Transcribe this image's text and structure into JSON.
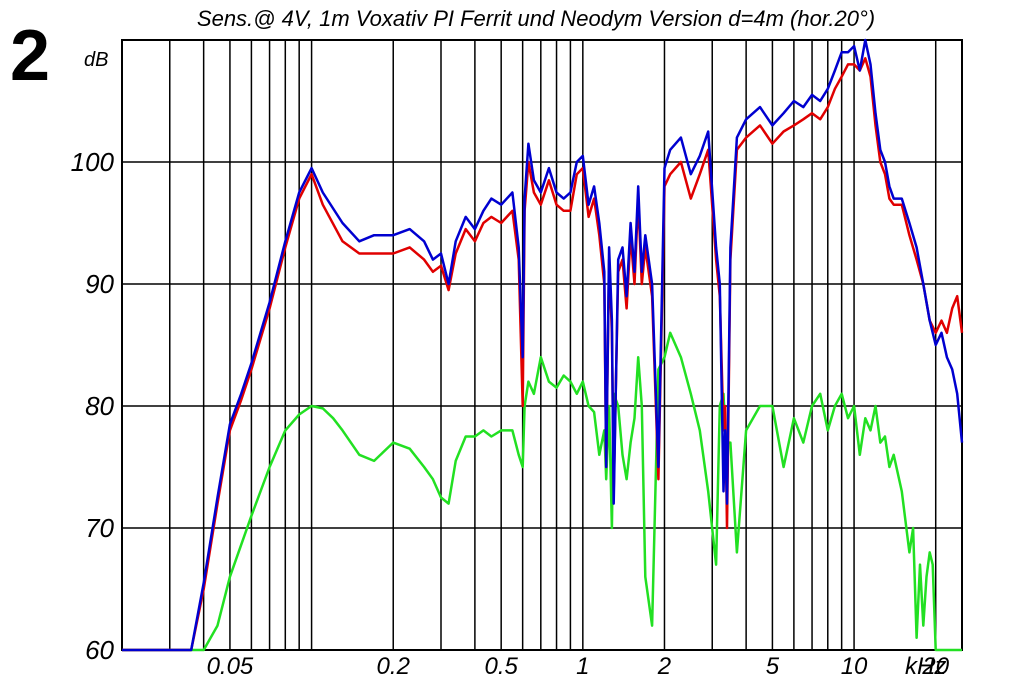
{
  "figure_number": "2",
  "chart_data": {
    "type": "line",
    "title": "Sens.@ 4V, 1m Voxativ PI Ferrit und Neodym Version d=4m (hor.20°)",
    "xlabel": "kHz",
    "ylabel": "dB",
    "x_scale": "log",
    "xlim": [
      0.02,
      25
    ],
    "ylim": [
      60,
      110
    ],
    "grid": true,
    "x_ticks": [
      {
        "value": 0.05,
        "label": "0.05"
      },
      {
        "value": 0.2,
        "label": "0.2"
      },
      {
        "value": 0.5,
        "label": "0.5"
      },
      {
        "value": 1,
        "label": "1"
      },
      {
        "value": 2,
        "label": "2"
      },
      {
        "value": 5,
        "label": "5"
      },
      {
        "value": 10,
        "label": "10"
      },
      {
        "value": 20,
        "label": "20"
      }
    ],
    "y_ticks": [
      {
        "value": 60,
        "label": "60"
      },
      {
        "value": 70,
        "label": "70"
      },
      {
        "value": 80,
        "label": "80"
      },
      {
        "value": 90,
        "label": "90"
      },
      {
        "value": 100,
        "label": "100"
      }
    ],
    "series": [
      {
        "color": "#e00000",
        "x": [
          0.02,
          0.036,
          0.04,
          0.045,
          0.05,
          0.055,
          0.06,
          0.07,
          0.08,
          0.09,
          0.1,
          0.11,
          0.13,
          0.15,
          0.17,
          0.2,
          0.23,
          0.26,
          0.28,
          0.3,
          0.32,
          0.34,
          0.37,
          0.4,
          0.43,
          0.46,
          0.5,
          0.55,
          0.58,
          0.6,
          0.61,
          0.63,
          0.66,
          0.7,
          0.75,
          0.8,
          0.85,
          0.9,
          0.95,
          1.0,
          1.05,
          1.1,
          1.15,
          1.2,
          1.22,
          1.25,
          1.28,
          1.3,
          1.35,
          1.4,
          1.45,
          1.5,
          1.55,
          1.6,
          1.65,
          1.7,
          1.8,
          1.9,
          2.0,
          2.1,
          2.3,
          2.5,
          2.7,
          2.9,
          3.1,
          3.2,
          3.3,
          3.35,
          3.4,
          3.5,
          3.7,
          4.0,
          4.5,
          5.0,
          5.5,
          6.0,
          6.5,
          7.0,
          7.5,
          8.0,
          8.5,
          9.0,
          9.5,
          10.0,
          10.5,
          11.0,
          11.5,
          12.0,
          12.5,
          13.0,
          13.5,
          14.0,
          15.0,
          16.0,
          17.0,
          18.0,
          19.0,
          20.0,
          21.0,
          22.0,
          23.0,
          24.0,
          25.0
        ],
        "y": [
          60,
          60,
          65,
          72,
          78,
          80.5,
          83,
          88,
          93,
          97,
          99,
          96.5,
          93.5,
          92.5,
          92.5,
          92.5,
          93,
          92,
          91,
          91.5,
          89.5,
          92.5,
          94.5,
          93.5,
          95,
          95.5,
          95,
          96,
          92,
          80,
          96,
          100,
          97.5,
          96.5,
          98.5,
          96.5,
          96,
          96,
          99,
          99.5,
          95.5,
          97,
          94,
          90,
          75,
          92,
          86,
          73,
          91,
          92,
          88,
          94,
          90,
          97,
          90,
          93,
          89,
          74,
          98,
          99,
          100,
          97,
          99,
          101,
          92,
          89,
          78,
          80,
          70,
          92,
          101,
          102,
          103,
          101.5,
          102.5,
          103,
          103.5,
          104,
          103.5,
          104.5,
          106,
          107,
          108,
          108,
          107.5,
          108.5,
          107,
          103,
          100,
          99,
          97,
          96.5,
          96.5,
          94,
          92,
          90,
          87,
          86,
          87,
          86,
          88,
          89,
          86
        ]
      },
      {
        "color": "#0000d0",
        "x": [
          0.02,
          0.036,
          0.04,
          0.045,
          0.05,
          0.055,
          0.06,
          0.07,
          0.08,
          0.09,
          0.1,
          0.11,
          0.13,
          0.15,
          0.17,
          0.2,
          0.23,
          0.26,
          0.28,
          0.3,
          0.32,
          0.34,
          0.37,
          0.4,
          0.43,
          0.46,
          0.5,
          0.55,
          0.58,
          0.6,
          0.61,
          0.63,
          0.66,
          0.7,
          0.75,
          0.8,
          0.85,
          0.9,
          0.95,
          1.0,
          1.05,
          1.1,
          1.15,
          1.2,
          1.22,
          1.25,
          1.28,
          1.3,
          1.35,
          1.4,
          1.45,
          1.5,
          1.55,
          1.6,
          1.65,
          1.7,
          1.8,
          1.9,
          2.0,
          2.1,
          2.3,
          2.5,
          2.7,
          2.9,
          3.1,
          3.2,
          3.3,
          3.35,
          3.4,
          3.5,
          3.7,
          4.0,
          4.5,
          5.0,
          5.5,
          6.0,
          6.5,
          7.0,
          7.5,
          8.0,
          8.5,
          9.0,
          9.5,
          10.0,
          10.5,
          11.0,
          11.5,
          12.0,
          12.5,
          13.0,
          13.5,
          14.0,
          15.0,
          16.0,
          17.0,
          18.0,
          19.0,
          20.0,
          21.0,
          22.0,
          23.0,
          24.0,
          25.0
        ],
        "y": [
          60,
          60,
          65.5,
          72.5,
          78.5,
          81,
          83.5,
          88.5,
          93.5,
          97.5,
          99.5,
          97.5,
          95,
          93.5,
          94,
          94,
          94.5,
          93.5,
          92,
          92.5,
          90,
          93.5,
          95.5,
          94.5,
          96,
          97,
          96.5,
          97.5,
          93,
          84,
          97,
          101.5,
          98.5,
          97.5,
          99.5,
          97.5,
          97,
          97.5,
          100,
          100.5,
          96.5,
          98,
          95,
          91,
          75,
          93,
          87,
          72,
          92,
          93,
          89,
          95,
          91,
          98,
          91,
          94,
          90,
          75,
          99.5,
          101,
          102,
          99,
          100.5,
          102.5,
          93,
          90,
          73,
          78,
          72,
          93,
          102,
          103.5,
          104.5,
          103,
          104,
          105,
          104.5,
          105.5,
          105,
          106,
          107.5,
          109,
          109,
          109.5,
          107.5,
          110,
          108,
          104,
          101,
          100,
          98,
          97,
          97,
          95,
          93,
          90,
          87,
          85,
          86,
          84,
          83,
          81,
          77
        ]
      },
      {
        "color": "#22e022",
        "x": [
          0.02,
          0.04,
          0.045,
          0.05,
          0.06,
          0.07,
          0.08,
          0.09,
          0.1,
          0.11,
          0.12,
          0.13,
          0.15,
          0.17,
          0.2,
          0.23,
          0.26,
          0.28,
          0.3,
          0.32,
          0.34,
          0.37,
          0.4,
          0.43,
          0.46,
          0.5,
          0.55,
          0.58,
          0.6,
          0.61,
          0.63,
          0.66,
          0.7,
          0.75,
          0.8,
          0.85,
          0.9,
          0.95,
          1.0,
          1.05,
          1.1,
          1.15,
          1.2,
          1.22,
          1.25,
          1.28,
          1.3,
          1.35,
          1.4,
          1.45,
          1.5,
          1.55,
          1.6,
          1.65,
          1.7,
          1.8,
          1.9,
          2.0,
          2.1,
          2.3,
          2.5,
          2.7,
          2.9,
          3.1,
          3.2,
          3.3,
          3.35,
          3.4,
          3.5,
          3.7,
          4.0,
          4.5,
          5.0,
          5.5,
          6.0,
          6.5,
          7.0,
          7.5,
          8.0,
          8.5,
          9.0,
          9.5,
          10.0,
          10.5,
          11.0,
          11.5,
          12.0,
          12.5,
          13.0,
          13.5,
          14.0,
          15.0,
          16.0,
          16.5,
          17.0,
          17.5,
          18.0,
          18.5,
          19.0,
          19.5,
          20.0,
          20.5,
          21.0,
          25.0
        ],
        "y": [
          60,
          60,
          62,
          66,
          71,
          75,
          78,
          79.3,
          80,
          79.8,
          79,
          78,
          76,
          75.5,
          77,
          76.5,
          75,
          74,
          72.5,
          72,
          75.5,
          77.5,
          77.5,
          78,
          77.5,
          78,
          78,
          76,
          75,
          80,
          82,
          81,
          84,
          82,
          81.5,
          82.5,
          82,
          81,
          82,
          80,
          79.5,
          76,
          78,
          74,
          80,
          70,
          81,
          80,
          76,
          74,
          77,
          79,
          84,
          80,
          66,
          62,
          83,
          84,
          86,
          84,
          81,
          78,
          73,
          67,
          80,
          81,
          78,
          77,
          77,
          68,
          78,
          80,
          80,
          75,
          79,
          77,
          80,
          81,
          78,
          80,
          81,
          79,
          80,
          76,
          79,
          78,
          80,
          77,
          77.5,
          75,
          76,
          73,
          68,
          70,
          61,
          67,
          62,
          66,
          68,
          67,
          60,
          60,
          60,
          60
        ]
      }
    ]
  }
}
